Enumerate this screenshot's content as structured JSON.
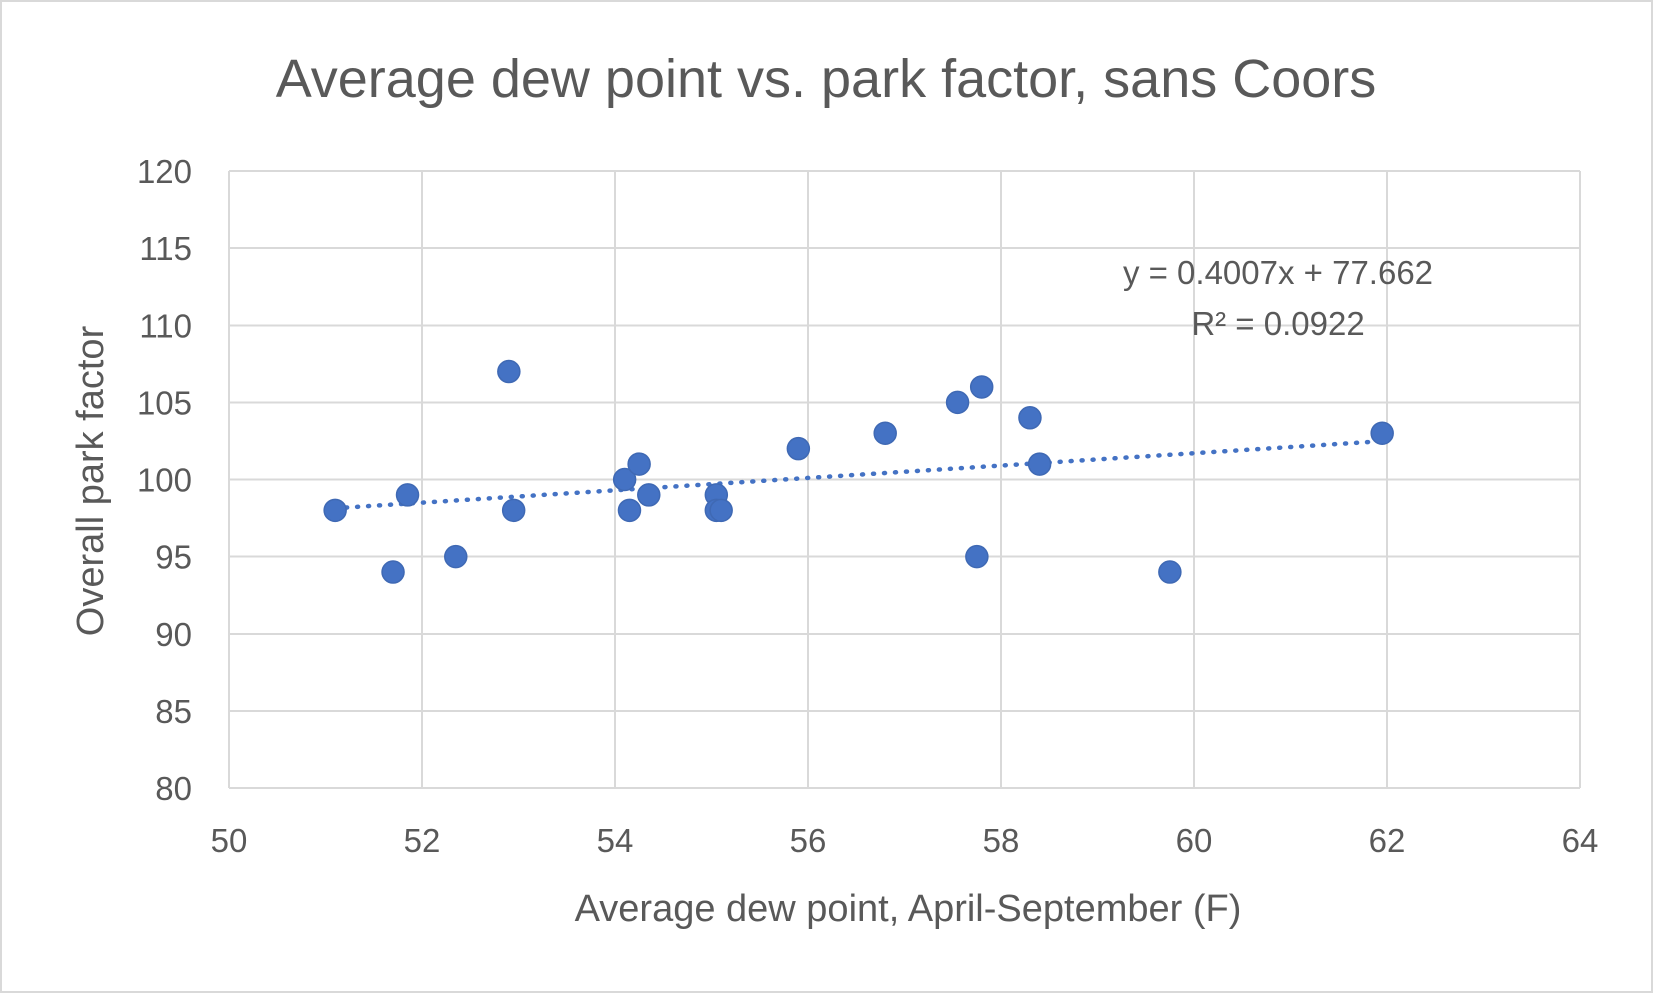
{
  "chart_data": {
    "type": "scatter",
    "title": "Average dew point vs. park factor, sans Coors",
    "xlabel": "Average dew point, April-September (F)",
    "ylabel": "Overall park factor",
    "xlim": [
      50,
      64
    ],
    "ylim": [
      80,
      120
    ],
    "x_ticks": [
      "50",
      "52",
      "54",
      "56",
      "58",
      "60",
      "62",
      "64"
    ],
    "y_ticks": [
      "80",
      "85",
      "90",
      "95",
      "100",
      "105",
      "110",
      "115",
      "120"
    ],
    "grid": true,
    "marker_color": "#4472c4",
    "points": [
      {
        "x": 51.1,
        "y": 98
      },
      {
        "x": 51.7,
        "y": 94
      },
      {
        "x": 51.85,
        "y": 99
      },
      {
        "x": 52.35,
        "y": 95
      },
      {
        "x": 52.9,
        "y": 107
      },
      {
        "x": 52.95,
        "y": 98
      },
      {
        "x": 54.1,
        "y": 100
      },
      {
        "x": 54.15,
        "y": 98
      },
      {
        "x": 54.25,
        "y": 101
      },
      {
        "x": 54.35,
        "y": 99
      },
      {
        "x": 55.05,
        "y": 99
      },
      {
        "x": 55.05,
        "y": 98
      },
      {
        "x": 55.1,
        "y": 98
      },
      {
        "x": 55.9,
        "y": 102
      },
      {
        "x": 56.8,
        "y": 103
      },
      {
        "x": 57.55,
        "y": 105
      },
      {
        "x": 57.75,
        "y": 95
      },
      {
        "x": 57.8,
        "y": 106
      },
      {
        "x": 58.3,
        "y": 104
      },
      {
        "x": 58.4,
        "y": 101
      },
      {
        "x": 59.75,
        "y": 94
      },
      {
        "x": 61.95,
        "y": 103
      }
    ],
    "trendline": {
      "type": "linear",
      "slope": 0.4007,
      "intercept": 77.662,
      "x_range": [
        51.1,
        61.95
      ],
      "equation_label": "y = 0.4007x + 77.662",
      "r2_label": "R² = 0.0922"
    }
  }
}
